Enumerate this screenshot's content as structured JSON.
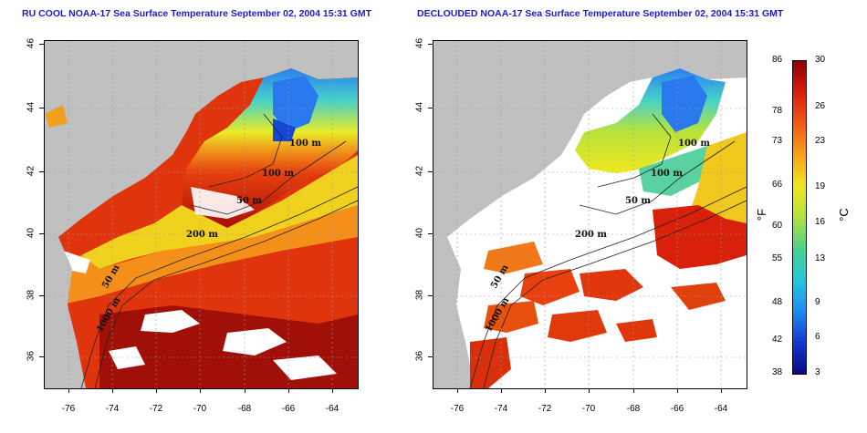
{
  "titles": {
    "left": "RU COOL NOAA-17 Sea Surface Temperature September 02, 2004 15:31 GMT",
    "right": "DECLOUDED NOAA-17 Sea Surface Temperature September 02, 2004 15:31 GMT"
  },
  "axes": {
    "lon_ticks": [
      "-76",
      "-74",
      "-72",
      "-70",
      "-68",
      "-66",
      "-64"
    ],
    "lat_ticks": [
      "36",
      "38",
      "40",
      "42",
      "44",
      "46"
    ]
  },
  "contour_labels": {
    "left": [
      "100 m",
      "100 m",
      "50 m",
      "200 m",
      "50 m",
      "1000 m"
    ],
    "right": [
      "100 m",
      "100 m",
      "50 m",
      "200 m",
      "50 m",
      "1000 m"
    ]
  },
  "colorbar": {
    "fahrenheit_ticks": [
      "86",
      "78",
      "73",
      "66",
      "60",
      "55",
      "48",
      "42",
      "38"
    ],
    "celsius_ticks": [
      "30",
      "26",
      "23",
      "19",
      "16",
      "13",
      "9",
      "6",
      "3"
    ],
    "unit_f": "°F",
    "unit_c": "°C",
    "colors": [
      "#8b0000",
      "#d81e0a",
      "#f05a14",
      "#f7a21a",
      "#f0e81e",
      "#b4e23c",
      "#4ad28c",
      "#22c8dc",
      "#1e8cf0",
      "#1438d2",
      "#0a0a82"
    ]
  },
  "colors": {
    "land": "#c0c0c0",
    "cloud": "#ffffff",
    "title": "#1c1cc8"
  }
}
